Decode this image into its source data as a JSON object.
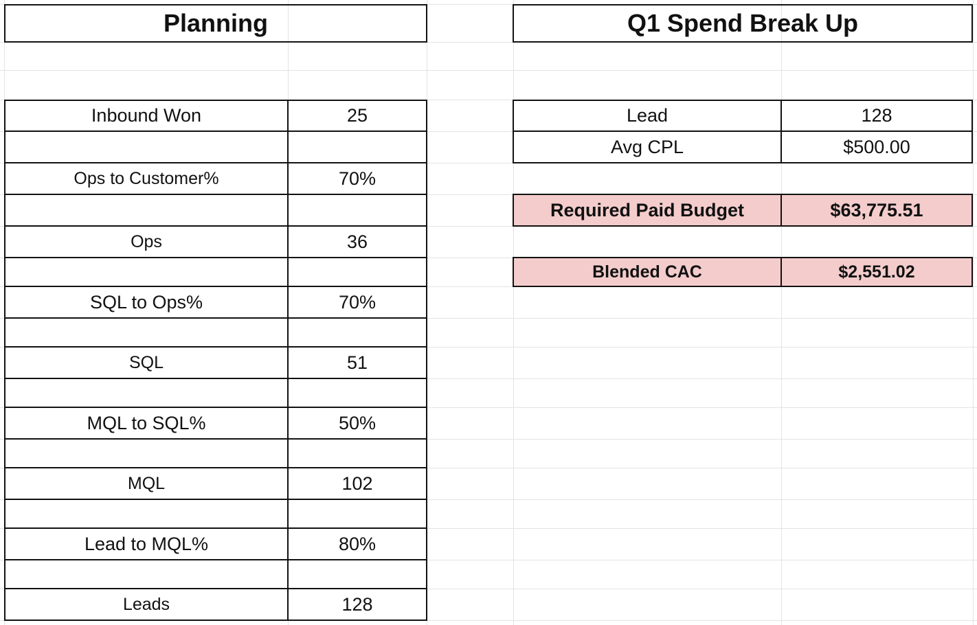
{
  "planning": {
    "title": "Planning",
    "rows": [
      {
        "label": "Inbound Won",
        "value": "25"
      },
      {
        "label": "Ops to Customer%",
        "value": "70%"
      },
      {
        "label": "Ops",
        "value": "36"
      },
      {
        "label": "SQL to Ops%",
        "value": "70%"
      },
      {
        "label": "SQL",
        "value": "51"
      },
      {
        "label": "MQL to SQL%",
        "value": "50%"
      },
      {
        "label": "MQL",
        "value": "102"
      },
      {
        "label": "Lead to MQL%",
        "value": "80%"
      },
      {
        "label": "Leads",
        "value": "128"
      }
    ]
  },
  "spend": {
    "title": "Q1 Spend Break Up",
    "lead": {
      "label": "Lead",
      "value": "128"
    },
    "avg_cpl": {
      "label": "Avg CPL",
      "value": "$500.00"
    },
    "required_paid_budget": {
      "label": "Required Paid Budget",
      "value": "$63,775.51"
    },
    "blended_cac": {
      "label": "Blended CAC",
      "value": "$2,551.02"
    }
  },
  "colors": {
    "highlight": "#f4cccc",
    "gridline": "#e3e3e3",
    "border": "#111111"
  }
}
